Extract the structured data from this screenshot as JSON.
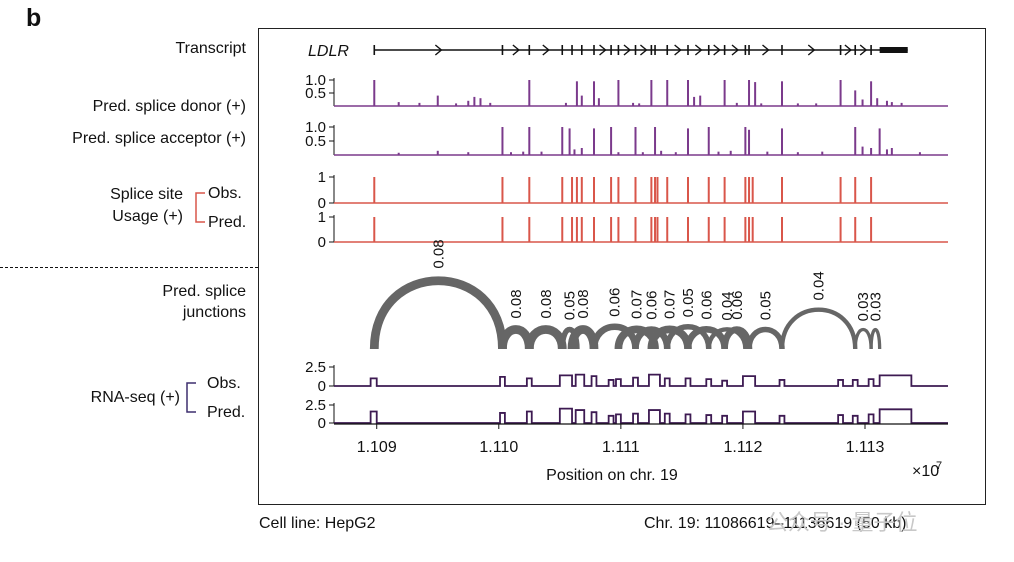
{
  "panel_label": "b",
  "track_labels": {
    "transcript": "Transcript",
    "donor": "Pred. splice donor (+)",
    "acceptor": "Pred. splice acceptor (+)",
    "usage_title_1": "Splice site",
    "usage_title_2": "Usage (+)",
    "obs": "Obs.",
    "pred": "Pred.",
    "junctions_1": "Pred. splice",
    "junctions_2": "junctions",
    "rnaseq": "RNA-seq (+)"
  },
  "gene_name": "LDLR",
  "footer": {
    "cell_line": "Cell line: HepG2",
    "region": "Chr. 19: 11086619–11136619 (50 kb)"
  },
  "watermark": "公众号 · 量子位",
  "colors": {
    "donor": "#7b3a8c",
    "usage": "#d9564a",
    "junction": "#666666",
    "rnaseq": "#3d1a52",
    "usage_bracket": "#d9564a",
    "rnaseq_bracket": "#3d2f6e"
  },
  "chart_data": {
    "type": "genome_tracks",
    "xlabel": "Position on chr. 19",
    "x_exponent_label": "×10",
    "x_exponent_power": "7",
    "xlim": [
      1.10865,
      1.11368
    ],
    "x_ticks": [
      {
        "value": 1.109,
        "label": "1.109"
      },
      {
        "value": 1.11,
        "label": "1.110"
      },
      {
        "value": 1.111,
        "label": "1.111"
      },
      {
        "value": 1.112,
        "label": "1.112"
      },
      {
        "value": 1.113,
        "label": "1.113"
      }
    ],
    "transcript": {
      "start": 1.10898,
      "end": 1.11335,
      "exon_ticks": [
        1.10898,
        1.11003,
        1.11025,
        1.11052,
        1.1106,
        1.11068,
        1.11078,
        1.11092,
        1.11098,
        1.11112,
        1.11125,
        1.11128,
        1.11138,
        1.11155,
        1.11172,
        1.11185,
        1.11202,
        1.11205,
        1.11232,
        1.1128,
        1.11292,
        1.11305
      ],
      "utr3_start": 1.11312,
      "utr3_end": 1.11335
    },
    "donor": {
      "ylim": [
        0,
        1.0
      ],
      "y_ticks": [
        {
          "value": 1.0,
          "label": "1.0"
        },
        {
          "value": 0.5,
          "label": "0.5"
        }
      ],
      "peaks": [
        [
          1.10898,
          1.0
        ],
        [
          1.10918,
          0.15
        ],
        [
          1.10935,
          0.12
        ],
        [
          1.1095,
          0.4
        ],
        [
          1.10965,
          0.1
        ],
        [
          1.10975,
          0.2
        ],
        [
          1.1098,
          0.35
        ],
        [
          1.10985,
          0.3
        ],
        [
          1.10993,
          0.12
        ],
        [
          1.11025,
          1.0
        ],
        [
          1.11055,
          0.12
        ],
        [
          1.11064,
          0.95
        ],
        [
          1.11068,
          0.4
        ],
        [
          1.11078,
          0.95
        ],
        [
          1.11082,
          0.3
        ],
        [
          1.11098,
          1.0
        ],
        [
          1.1111,
          0.12
        ],
        [
          1.11115,
          0.1
        ],
        [
          1.11125,
          1.0
        ],
        [
          1.11138,
          1.0
        ],
        [
          1.11155,
          1.0
        ],
        [
          1.1116,
          0.35
        ],
        [
          1.11165,
          0.4
        ],
        [
          1.11185,
          1.0
        ],
        [
          1.11195,
          0.12
        ],
        [
          1.11205,
          1.0
        ],
        [
          1.1121,
          0.92
        ],
        [
          1.11215,
          0.1
        ],
        [
          1.11232,
          0.95
        ],
        [
          1.11245,
          0.1
        ],
        [
          1.1126,
          0.1
        ],
        [
          1.1128,
          1.0
        ],
        [
          1.11292,
          0.6
        ],
        [
          1.11298,
          0.25
        ],
        [
          1.11305,
          0.95
        ],
        [
          1.1131,
          0.3
        ],
        [
          1.11318,
          0.2
        ],
        [
          1.11322,
          0.15
        ],
        [
          1.1133,
          0.12
        ]
      ]
    },
    "acceptor": {
      "ylim": [
        0,
        1.0
      ],
      "y_ticks": [
        {
          "value": 1.0,
          "label": "1.0"
        },
        {
          "value": 0.5,
          "label": "0.5"
        }
      ],
      "peaks": [
        [
          1.10918,
          0.08
        ],
        [
          1.1095,
          0.15
        ],
        [
          1.10975,
          0.1
        ],
        [
          1.11003,
          1.0
        ],
        [
          1.1101,
          0.1
        ],
        [
          1.1102,
          0.12
        ],
        [
          1.11025,
          1.0
        ],
        [
          1.11035,
          0.12
        ],
        [
          1.11052,
          1.0
        ],
        [
          1.11058,
          0.95
        ],
        [
          1.11062,
          0.2
        ],
        [
          1.11068,
          0.25
        ],
        [
          1.11078,
          0.95
        ],
        [
          1.11092,
          1.0
        ],
        [
          1.11098,
          0.1
        ],
        [
          1.11112,
          1.0
        ],
        [
          1.11118,
          0.1
        ],
        [
          1.11128,
          1.0
        ],
        [
          1.11133,
          0.15
        ],
        [
          1.11145,
          0.1
        ],
        [
          1.11155,
          0.95
        ],
        [
          1.11172,
          1.0
        ],
        [
          1.1118,
          0.12
        ],
        [
          1.1119,
          0.15
        ],
        [
          1.11202,
          1.0
        ],
        [
          1.11205,
          0.9
        ],
        [
          1.1122,
          0.12
        ],
        [
          1.11232,
          0.95
        ],
        [
          1.11245,
          0.1
        ],
        [
          1.11265,
          0.12
        ],
        [
          1.11292,
          1.0
        ],
        [
          1.11298,
          0.3
        ],
        [
          1.11305,
          0.25
        ],
        [
          1.11312,
          0.95
        ],
        [
          1.11318,
          0.2
        ],
        [
          1.11322,
          0.25
        ],
        [
          1.11345,
          0.1
        ]
      ]
    },
    "usage_obs": {
      "ylim": [
        0,
        1
      ],
      "y_ticks": [
        {
          "value": 1,
          "label": "1"
        },
        {
          "value": 0,
          "label": "0"
        }
      ],
      "sites": [
        1.10898,
        1.11003,
        1.11025,
        1.11052,
        1.1106,
        1.11064,
        1.11068,
        1.11078,
        1.11092,
        1.11098,
        1.11112,
        1.11125,
        1.11128,
        1.1113,
        1.11138,
        1.11155,
        1.11172,
        1.11185,
        1.11202,
        1.11205,
        1.11208,
        1.11232,
        1.1128,
        1.11292,
        1.11305
      ]
    },
    "usage_pred": {
      "ylim": [
        0,
        1
      ],
      "y_ticks": [
        {
          "value": 1,
          "label": "1"
        },
        {
          "value": 0,
          "label": "0"
        }
      ],
      "sites": [
        1.10898,
        1.11003,
        1.11025,
        1.11052,
        1.1106,
        1.11064,
        1.11068,
        1.11078,
        1.11092,
        1.11098,
        1.11112,
        1.11125,
        1.11128,
        1.1113,
        1.11138,
        1.11155,
        1.11172,
        1.11185,
        1.11202,
        1.11205,
        1.11208,
        1.11232,
        1.1128,
        1.11292,
        1.11305
      ]
    },
    "junctions": [
      {
        "start": 1.10898,
        "end": 1.11003,
        "value": "0.08",
        "weight": 0.08
      },
      {
        "start": 1.11003,
        "end": 1.11025,
        "value": "0.08",
        "weight": 0.08
      },
      {
        "start": 1.11025,
        "end": 1.11052,
        "value": "0.08",
        "weight": 0.08
      },
      {
        "start": 1.11052,
        "end": 1.11064,
        "value": "0.05",
        "weight": 0.05
      },
      {
        "start": 1.1106,
        "end": 1.11078,
        "value": "0.08",
        "weight": 0.08
      },
      {
        "start": 1.11078,
        "end": 1.11112,
        "value": "0.06",
        "weight": 0.06
      },
      {
        "start": 1.11098,
        "end": 1.11128,
        "value": "0.07",
        "weight": 0.07
      },
      {
        "start": 1.11112,
        "end": 1.11138,
        "value": "0.06",
        "weight": 0.06
      },
      {
        "start": 1.11125,
        "end": 1.11155,
        "value": "0.07",
        "weight": 0.07
      },
      {
        "start": 1.11138,
        "end": 1.11172,
        "value": "0.05",
        "weight": 0.05
      },
      {
        "start": 1.11155,
        "end": 1.11185,
        "value": "0.06",
        "weight": 0.06
      },
      {
        "start": 1.11172,
        "end": 1.11202,
        "value": "0.04",
        "weight": 0.04
      },
      {
        "start": 1.11185,
        "end": 1.11205,
        "value": "0.06",
        "weight": 0.06
      },
      {
        "start": 1.11205,
        "end": 1.11232,
        "value": "0.05",
        "weight": 0.05
      },
      {
        "start": 1.11232,
        "end": 1.11292,
        "value": "0.04",
        "weight": 0.04
      },
      {
        "start": 1.11292,
        "end": 1.11305,
        "value": "0.03",
        "weight": 0.03
      },
      {
        "start": 1.11305,
        "end": 1.11312,
        "value": "0.03",
        "weight": 0.03
      }
    ],
    "rnaseq_obs": {
      "ylim": [
        0,
        2.5
      ],
      "y_ticks": [
        {
          "value": 2.5,
          "label": "2.5"
        },
        {
          "value": 0,
          "label": "0"
        }
      ],
      "exons": [
        [
          1.10895,
          1.109,
          1.0
        ],
        [
          1.11001,
          1.11005,
          1.2
        ],
        [
          1.11023,
          1.11027,
          1.0
        ],
        [
          1.1105,
          1.1106,
          1.4
        ],
        [
          1.11063,
          1.1107,
          1.5
        ],
        [
          1.11076,
          1.1108,
          1.3
        ],
        [
          1.1109,
          1.11094,
          0.8
        ],
        [
          1.11096,
          1.111,
          0.9
        ],
        [
          1.1111,
          1.11114,
          1.1
        ],
        [
          1.11123,
          1.11132,
          1.5
        ],
        [
          1.11136,
          1.1114,
          1.0
        ],
        [
          1.11153,
          1.11157,
          1.0
        ],
        [
          1.1117,
          1.11174,
          0.9
        ],
        [
          1.11183,
          1.11187,
          0.7
        ],
        [
          1.112,
          1.1121,
          1.3
        ],
        [
          1.1123,
          1.11234,
          0.8
        ],
        [
          1.11278,
          1.11282,
          0.8
        ],
        [
          1.1129,
          1.11294,
          0.8
        ],
        [
          1.11303,
          1.11307,
          0.9
        ],
        [
          1.11312,
          1.11338,
          1.4
        ]
      ]
    },
    "rnaseq_pred": {
      "ylim": [
        0,
        2.5
      ],
      "y_ticks": [
        {
          "value": 2.5,
          "label": "2.5"
        },
        {
          "value": 0,
          "label": "0"
        }
      ],
      "exons": [
        [
          1.10895,
          1.109,
          1.6
        ],
        [
          1.11001,
          1.11005,
          1.4
        ],
        [
          1.11023,
          1.11027,
          1.6
        ],
        [
          1.1105,
          1.1106,
          2.0
        ],
        [
          1.11063,
          1.1107,
          1.8
        ],
        [
          1.11076,
          1.1108,
          1.5
        ],
        [
          1.1109,
          1.11094,
          1.0
        ],
        [
          1.11096,
          1.111,
          1.2
        ],
        [
          1.1111,
          1.11114,
          1.3
        ],
        [
          1.11123,
          1.11132,
          1.8
        ],
        [
          1.11136,
          1.1114,
          1.3
        ],
        [
          1.11153,
          1.11157,
          1.2
        ],
        [
          1.1117,
          1.11174,
          1.1
        ],
        [
          1.11183,
          1.11187,
          1.0
        ],
        [
          1.112,
          1.1121,
          1.6
        ],
        [
          1.1123,
          1.11234,
          1.0
        ],
        [
          1.11278,
          1.11282,
          1.1
        ],
        [
          1.1129,
          1.11294,
          1.0
        ],
        [
          1.11303,
          1.11307,
          1.2
        ],
        [
          1.11312,
          1.11338,
          1.9
        ]
      ]
    }
  }
}
